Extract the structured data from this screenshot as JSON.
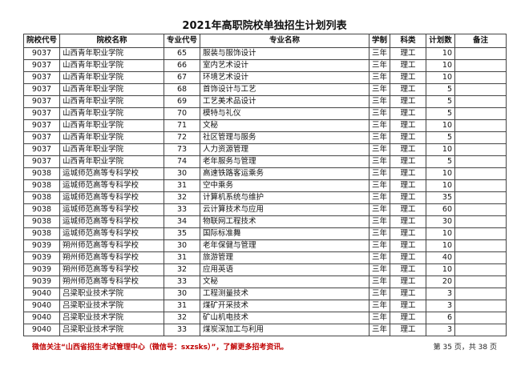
{
  "title": "2021年高职院校单独招生计划列表",
  "columns": [
    "院校代号",
    "院校名称",
    "专业代号",
    "专业名称",
    "学制",
    "科类",
    "计划数",
    "备注"
  ],
  "rows": [
    [
      "9037",
      "山西青年职业学院",
      "65",
      "服装与服饰设计",
      "三年",
      "理工",
      "10",
      ""
    ],
    [
      "9037",
      "山西青年职业学院",
      "66",
      "室内艺术设计",
      "三年",
      "理工",
      "10",
      ""
    ],
    [
      "9037",
      "山西青年职业学院",
      "67",
      "环境艺术设计",
      "三年",
      "理工",
      "10",
      ""
    ],
    [
      "9037",
      "山西青年职业学院",
      "68",
      "首饰设计与工艺",
      "三年",
      "理工",
      "5",
      ""
    ],
    [
      "9037",
      "山西青年职业学院",
      "69",
      "工艺美术品设计",
      "三年",
      "理工",
      "5",
      ""
    ],
    [
      "9037",
      "山西青年职业学院",
      "70",
      "模特与礼仪",
      "三年",
      "理工",
      "5",
      ""
    ],
    [
      "9037",
      "山西青年职业学院",
      "71",
      "文秘",
      "三年",
      "理工",
      "10",
      ""
    ],
    [
      "9037",
      "山西青年职业学院",
      "72",
      "社区管理与服务",
      "三年",
      "理工",
      "5",
      ""
    ],
    [
      "9037",
      "山西青年职业学院",
      "73",
      "人力资源管理",
      "三年",
      "理工",
      "10",
      ""
    ],
    [
      "9037",
      "山西青年职业学院",
      "74",
      "老年服务与管理",
      "三年",
      "理工",
      "5",
      ""
    ],
    [
      "9038",
      "运城师范高等专科学校",
      "30",
      "高速铁路客运乘务",
      "三年",
      "理工",
      "10",
      ""
    ],
    [
      "9038",
      "运城师范高等专科学校",
      "31",
      "空中乘务",
      "三年",
      "理工",
      "10",
      ""
    ],
    [
      "9038",
      "运城师范高等专科学校",
      "32",
      "计算机系统与维护",
      "三年",
      "理工",
      "35",
      ""
    ],
    [
      "9038",
      "运城师范高等专科学校",
      "33",
      "云计算技术与应用",
      "三年",
      "理工",
      "60",
      ""
    ],
    [
      "9038",
      "运城师范高等专科学校",
      "34",
      "物联网工程技术",
      "三年",
      "理工",
      "30",
      ""
    ],
    [
      "9038",
      "运城师范高等专科学校",
      "35",
      "国际标准舞",
      "三年",
      "理工",
      "10",
      ""
    ],
    [
      "9039",
      "朔州师范高等专科学校",
      "30",
      "老年保健与管理",
      "三年",
      "理工",
      "10",
      ""
    ],
    [
      "9039",
      "朔州师范高等专科学校",
      "31",
      "旅游管理",
      "三年",
      "理工",
      "40",
      ""
    ],
    [
      "9039",
      "朔州师范高等专科学校",
      "32",
      "应用英语",
      "三年",
      "理工",
      "10",
      ""
    ],
    [
      "9039",
      "朔州师范高等专科学校",
      "33",
      "文秘",
      "三年",
      "理工",
      "20",
      ""
    ],
    [
      "9040",
      "吕梁职业技术学院",
      "30",
      "工程测量技术",
      "三年",
      "理工",
      "3",
      ""
    ],
    [
      "9040",
      "吕梁职业技术学院",
      "31",
      "煤矿开采技术",
      "三年",
      "理工",
      "3",
      ""
    ],
    [
      "9040",
      "吕梁职业技术学院",
      "32",
      "矿山机电技术",
      "三年",
      "理工",
      "6",
      ""
    ],
    [
      "9040",
      "吕梁职业技术学院",
      "33",
      "煤炭深加工与利用",
      "三年",
      "理工",
      "3",
      ""
    ]
  ],
  "footer": {
    "notice": "微信关注“山西省招生考试管理中心（微信号：sxzsks）”，了解更多招考资讯。",
    "page": "第 35 页，共 38 页"
  },
  "colors": {
    "notice": "#c00000"
  }
}
